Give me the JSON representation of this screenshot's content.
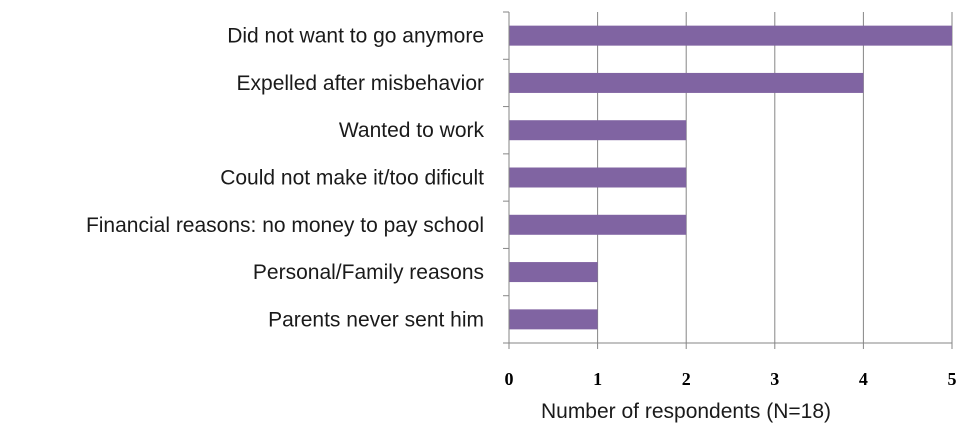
{
  "chart_data": {
    "type": "bar",
    "orientation": "horizontal",
    "categories": [
      "Did not want to go anymore",
      "Expelled after misbehavior",
      "Wanted to work",
      "Could not make it/too dificult",
      "Financial reasons: no money to pay school",
      "Personal/Family reasons",
      "Parents never sent him"
    ],
    "values": [
      5,
      4,
      2,
      2,
      2,
      1,
      1
    ],
    "title": "",
    "xlabel": "Number of respondents (N=18)",
    "ylabel": "",
    "xlim": [
      0,
      5
    ],
    "xticks": [
      "0",
      "1",
      "2",
      "3",
      "4",
      "5"
    ],
    "grid": "vertical",
    "legend": "none",
    "bar_color": "#8064a2",
    "grid_color": "#868686",
    "axis_color": "#868686"
  }
}
